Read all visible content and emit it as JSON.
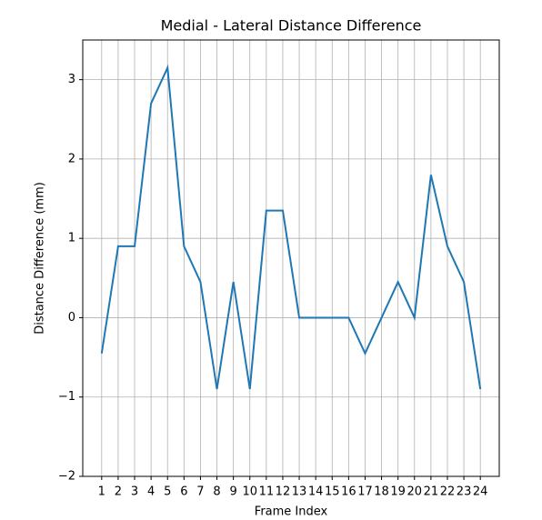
{
  "chart_data": {
    "type": "line",
    "title": "Medial - Lateral Distance Difference",
    "x_label": "Frame Index",
    "y_label": "Distance Difference (mm)",
    "x": [
      1,
      2,
      3,
      4,
      5,
      6,
      7,
      8,
      9,
      10,
      11,
      12,
      13,
      14,
      15,
      16,
      17,
      18,
      19,
      20,
      21,
      22,
      23,
      24
    ],
    "series": [
      {
        "color": "#1f77b4",
        "values": [
          -0.45,
          0.9,
          0.9,
          2.7,
          3.15,
          0.9,
          0.45,
          -0.9,
          0.45,
          -0.9,
          1.35,
          1.35,
          0,
          0,
          0,
          0,
          -0.45,
          0,
          0.45,
          0,
          1.8,
          0.9,
          0.45,
          -0.9
        ]
      }
    ],
    "xlim": [
      -0.15,
      25.15
    ],
    "xticks": [
      1,
      2,
      3,
      4,
      5,
      6,
      7,
      8,
      9,
      10,
      11,
      12,
      13,
      14,
      15,
      16,
      17,
      18,
      19,
      20,
      21,
      22,
      23,
      24
    ],
    "ylim": [
      -2,
      3.5
    ],
    "yticks": [
      {
        "value": -2,
        "label": "−2"
      },
      {
        "value": -1,
        "label": "−1"
      },
      0,
      1,
      2,
      3
    ],
    "grid": true
  }
}
